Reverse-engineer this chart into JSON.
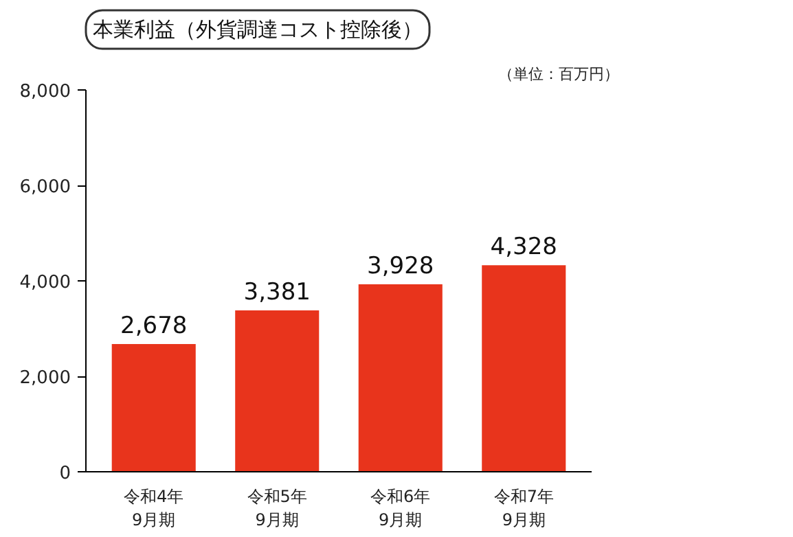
{
  "chart_data": {
    "type": "bar",
    "title": "本業利益（外貨調達コスト控除後）",
    "annotations": [
      "（単位：百万円）"
    ],
    "categories": [
      "令和4年\n9月期",
      "令和5年\n9月期",
      "令和6年\n9月期",
      "令和7年\n9月期"
    ],
    "values": [
      2678,
      3381,
      3928,
      4328
    ],
    "color": "#e8341c",
    "ylim": [
      0,
      8000
    ],
    "yticks": [
      {
        "value": 0,
        "label": "0"
      },
      {
        "value": 2000,
        "label": "2,000"
      },
      {
        "value": 4000,
        "label": "4,000"
      },
      {
        "value": 6000,
        "label": "6,000"
      },
      {
        "value": 8000,
        "label": "8,000"
      }
    ],
    "value_labels": [
      "2,678",
      "3,381",
      "3,928",
      "4,328"
    ],
    "grid": false
  }
}
